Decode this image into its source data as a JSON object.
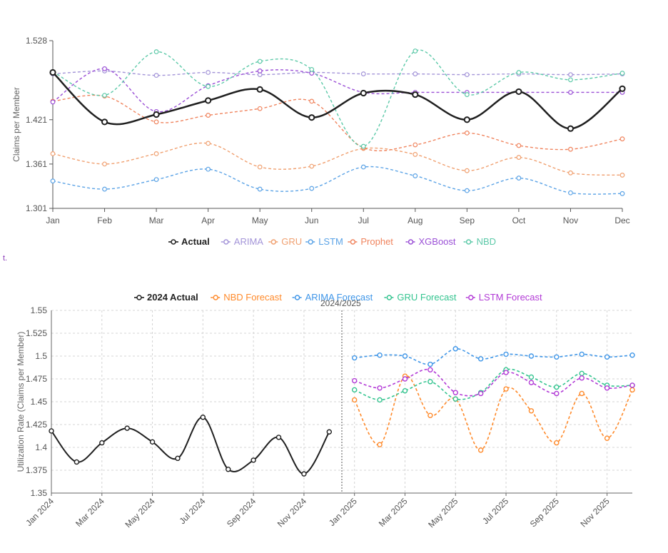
{
  "footnote": "t.",
  "chart_data": [
    {
      "type": "line",
      "ylabel": "Claims per Member",
      "ylim": [
        1.301,
        1.528
      ],
      "yticks": [
        "1.528",
        "1.421",
        "1.361",
        "1.301"
      ],
      "categories": [
        "Jan",
        "Feb",
        "Mar",
        "Apr",
        "May",
        "Jun",
        "Jul",
        "Aug",
        "Sep",
        "Oct",
        "Nov",
        "Dec"
      ],
      "legend_position": "bottom",
      "series": [
        {
          "name": "Actual",
          "color": "#1f1f1f",
          "dashed": false,
          "width": 2.5,
          "values": [
            1.485,
            1.418,
            1.428,
            1.447,
            1.462,
            1.424,
            1.457,
            1.455,
            1.421,
            1.459,
            1.409,
            1.463
          ]
        },
        {
          "name": "ARIMA",
          "color": "#a394d8",
          "dashed": true,
          "width": 1.4,
          "values": [
            1.483,
            1.487,
            1.481,
            1.485,
            1.482,
            1.485,
            1.483,
            1.483,
            1.482,
            1.483,
            1.482,
            1.483
          ]
        },
        {
          "name": "GRU",
          "color": "#f0a070",
          "dashed": true,
          "width": 1.4,
          "values": [
            1.375,
            1.361,
            1.375,
            1.389,
            1.357,
            1.358,
            1.382,
            1.374,
            1.352,
            1.37,
            1.349,
            1.346
          ]
        },
        {
          "name": "LSTM",
          "color": "#5ba3e6",
          "dashed": true,
          "width": 1.4,
          "values": [
            1.338,
            1.327,
            1.34,
            1.354,
            1.327,
            1.328,
            1.357,
            1.345,
            1.325,
            1.342,
            1.322,
            1.321
          ]
        },
        {
          "name": "Prophet",
          "color": "#f0845e",
          "dashed": true,
          "width": 1.4,
          "values": [
            1.446,
            1.453,
            1.418,
            1.427,
            1.436,
            1.446,
            1.383,
            1.387,
            1.403,
            1.386,
            1.381,
            1.395
          ]
        },
        {
          "name": "XGBoost",
          "color": "#9a4fd6",
          "dashed": true,
          "width": 1.4,
          "values": [
            1.445,
            1.49,
            1.432,
            1.467,
            1.487,
            1.484,
            1.458,
            1.458,
            1.458,
            1.458,
            1.458,
            1.458
          ]
        },
        {
          "name": "NBD",
          "color": "#5cc9a8",
          "dashed": true,
          "width": 1.4,
          "values": [
            1.486,
            1.454,
            1.513,
            1.466,
            1.5,
            1.489,
            1.385,
            1.514,
            1.455,
            1.485,
            1.475,
            1.484
          ]
        }
      ]
    },
    {
      "type": "line",
      "title": "2024/2025",
      "ylabel": "Utilization Rate (Claims per Member)",
      "ylim": [
        1.35,
        1.55
      ],
      "yticks": [
        "1.55",
        "1.525",
        "1.5",
        "1.475",
        "1.45",
        "1.425",
        "1.4",
        "1.375",
        "1.35"
      ],
      "xtick_labels": [
        "Jan 2024",
        "Mar 2024",
        "May 2024",
        "Jul 2024",
        "Sep 2024",
        "Nov 2024",
        "Jan 2025",
        "Mar 2025",
        "May 2025",
        "Jul 2025",
        "Sep 2025",
        "Nov 2025"
      ],
      "legend_position": "top",
      "series": [
        {
          "name": "2024 Actual",
          "color": "#1f1f1f",
          "dashed": false,
          "width": 2,
          "segment": "2024",
          "values": [
            1.418,
            1.384,
            1.405,
            1.421,
            1.406,
            1.388,
            1.433,
            1.376,
            1.386,
            1.411,
            1.371,
            1.417
          ]
        },
        {
          "name": "NBD Forecast",
          "color": "#ff8a2b",
          "dashed": true,
          "width": 1.6,
          "segment": "2025",
          "values": [
            1.452,
            1.403,
            1.478,
            1.435,
            1.453,
            1.397,
            1.464,
            1.44,
            1.405,
            1.459,
            1.41,
            1.463
          ]
        },
        {
          "name": "ARIMA Forecast",
          "color": "#3f96e8",
          "dashed": true,
          "width": 1.6,
          "segment": "2025",
          "values": [
            1.498,
            1.501,
            1.5,
            1.491,
            1.508,
            1.497,
            1.502,
            1.5,
            1.499,
            1.502,
            1.499,
            1.501
          ]
        },
        {
          "name": "GRU Forecast",
          "color": "#33c48f",
          "dashed": true,
          "width": 1.6,
          "segment": "2025",
          "values": [
            1.463,
            1.452,
            1.462,
            1.472,
            1.453,
            1.46,
            1.485,
            1.477,
            1.466,
            1.481,
            1.468,
            1.468
          ]
        },
        {
          "name": "LSTM Forecast",
          "color": "#b23ad6",
          "dashed": true,
          "width": 1.6,
          "segment": "2025",
          "values": [
            1.473,
            1.465,
            1.475,
            1.485,
            1.46,
            1.459,
            1.482,
            1.471,
            1.459,
            1.476,
            1.465,
            1.468
          ]
        }
      ]
    }
  ]
}
